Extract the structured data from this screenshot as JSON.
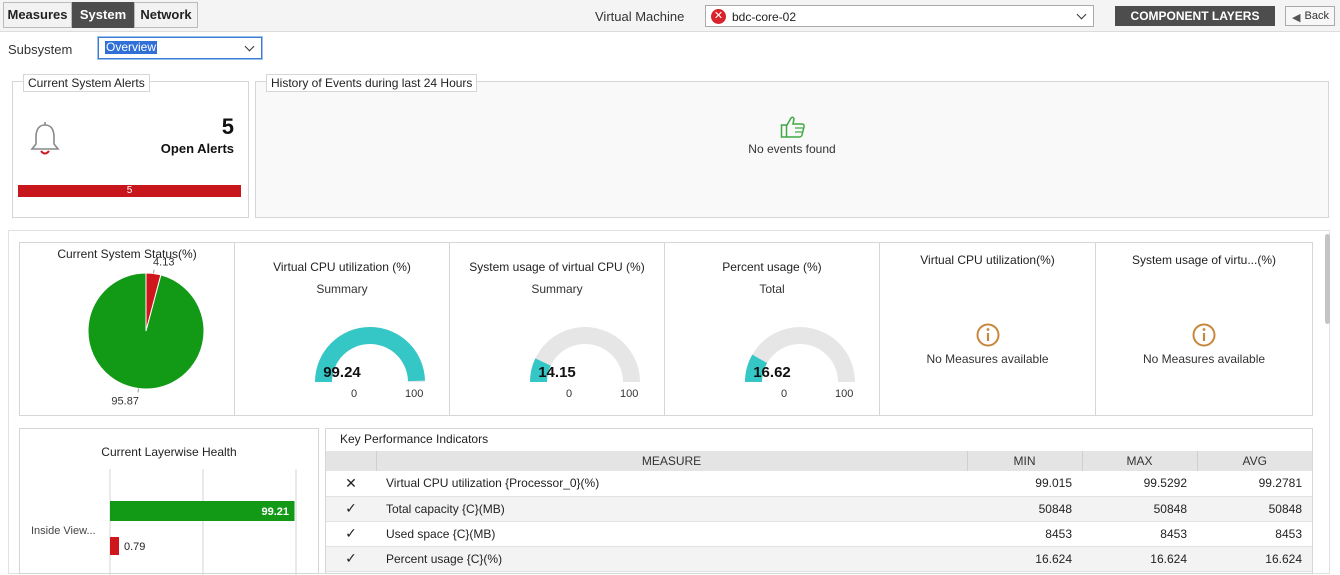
{
  "tabs": [
    {
      "label": "Measures",
      "active": false
    },
    {
      "label": "System",
      "active": true
    },
    {
      "label": "Network",
      "active": false
    }
  ],
  "vm": {
    "label": "Virtual Machine",
    "value": "bdc-core-02",
    "status": "error"
  },
  "buttons": {
    "component_layers": "COMPONENT LAYERS",
    "back": "Back"
  },
  "subsystem": {
    "label": "Subsystem",
    "value": "Overview"
  },
  "alerts": {
    "title": "Current System Alerts",
    "count": "5",
    "label": "Open Alerts",
    "bar_value": "5",
    "bar_color": "#c8161d"
  },
  "events": {
    "title": "History of Events during last 24 Hours",
    "message": "No events found",
    "icon": "thumbs-up-icon"
  },
  "status": {
    "title": "Current System Status(%)",
    "chart_data": {
      "type": "pie",
      "title": "Current System Status(%)",
      "slices": [
        {
          "label": "4.13",
          "value": 4.13,
          "color": "#d0161d"
        },
        {
          "label": "95.87",
          "value": 95.87,
          "color": "#129a17"
        }
      ]
    }
  },
  "gauges": [
    {
      "title": "Virtual CPU utilization (%)",
      "sub": "Summary",
      "value": 99.24,
      "display": "99.24",
      "min": "0",
      "max": "100",
      "color": "#35c6c6"
    },
    {
      "title": "System usage of virtual CPU (%)",
      "sub": "Summary",
      "value": 14.15,
      "display": "14.15",
      "min": "0",
      "max": "100",
      "color": "#35c6c6"
    },
    {
      "title": "Percent usage (%)",
      "sub": "Total",
      "value": 16.62,
      "display": "16.62",
      "min": "0",
      "max": "100",
      "color": "#35c6c6"
    }
  ],
  "no_measures": [
    {
      "title": "Virtual CPU utilization(%)",
      "message": "No Measures available"
    },
    {
      "title": "System usage of virtu...(%)",
      "message": "No Measures available"
    }
  ],
  "layerwise": {
    "title": "Current Layerwise Health",
    "chart_data": {
      "type": "bar",
      "categories": [
        "Inside View..."
      ],
      "series": [
        {
          "values": [
            99.21
          ],
          "color": "#129a17"
        },
        {
          "values": [
            0.79
          ],
          "color": "#d0161d"
        }
      ],
      "xlim": [
        0,
        100
      ]
    },
    "category_label": "Inside View...",
    "bar_green": "99.21",
    "bar_red": "0.79"
  },
  "kpi": {
    "title": "Key Performance Indicators",
    "headers": {
      "measure": "MEASURE",
      "min": "MIN",
      "max": "MAX",
      "avg": "AVG"
    },
    "rows": [
      {
        "status": "error",
        "measure": "Virtual CPU utilization {Processor_0}(%)",
        "min": "99.015",
        "max": "99.5292",
        "avg": "99.2781"
      },
      {
        "status": "ok",
        "measure": "Total capacity {C}(MB)",
        "min": "50848",
        "max": "50848",
        "avg": "50848"
      },
      {
        "status": "ok",
        "measure": "Used space {C}(MB)",
        "min": "8453",
        "max": "8453",
        "avg": "8453"
      },
      {
        "status": "ok",
        "measure": "Percent usage {C}(%)",
        "min": "16.624",
        "max": "16.624",
        "avg": "16.624"
      }
    ]
  }
}
